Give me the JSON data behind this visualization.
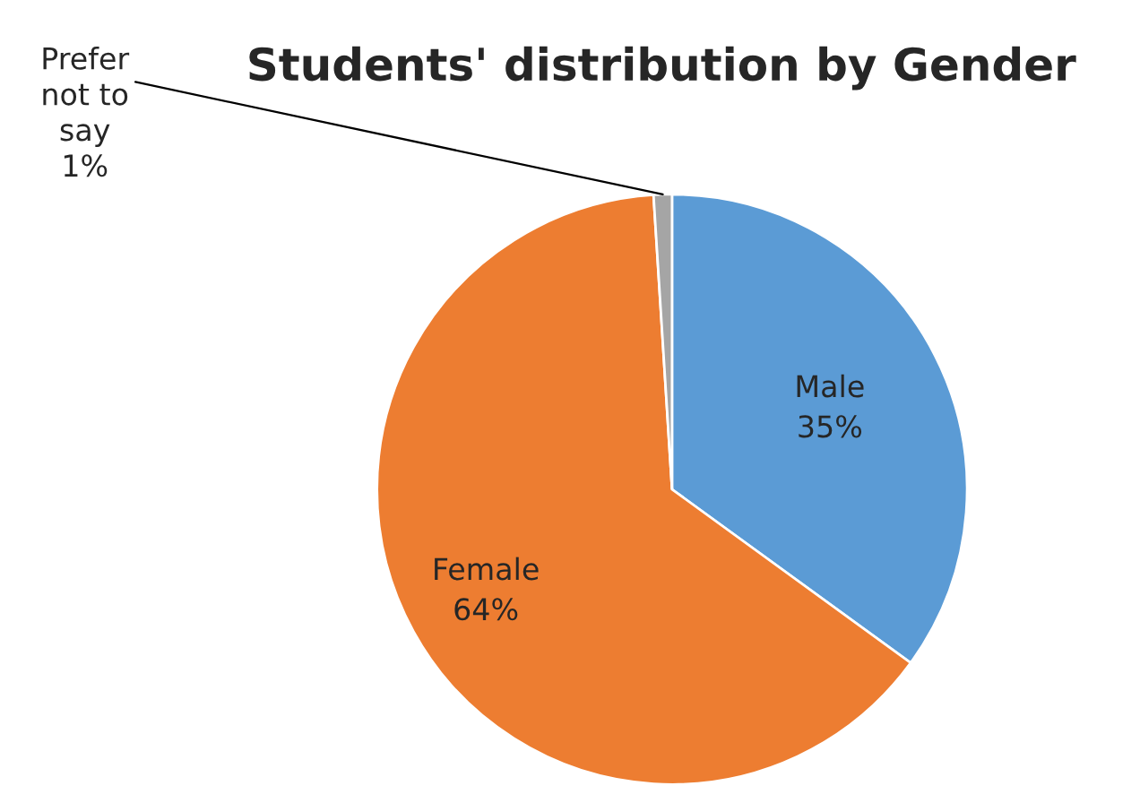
{
  "chart_data": {
    "type": "pie",
    "title": "Students' distribution by Gender",
    "categories": [
      "Male",
      "Female",
      "Prefer not to say"
    ],
    "values": [
      35,
      64,
      1
    ],
    "colors": [
      "#5b9bd5",
      "#ed7d31",
      "#a5a5a5"
    ],
    "value_labels": [
      "35%",
      "64%",
      "1%"
    ]
  }
}
